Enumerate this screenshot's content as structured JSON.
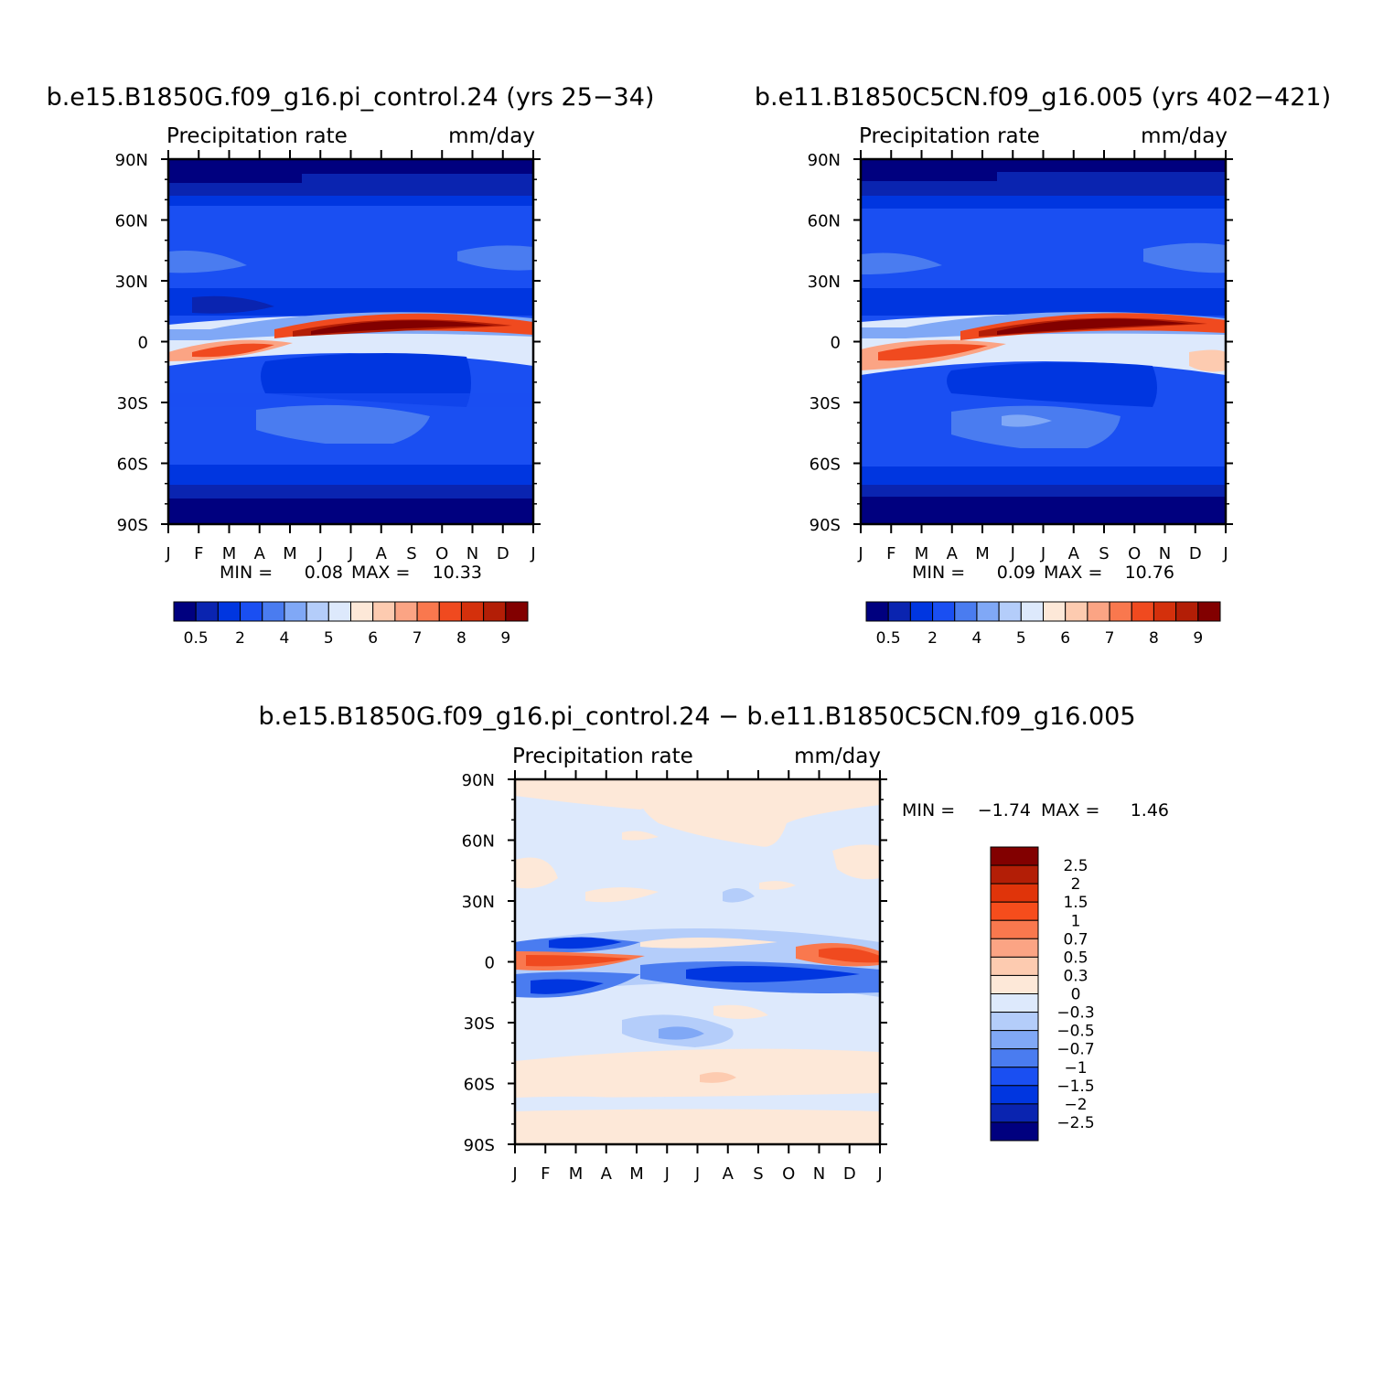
{
  "chart_data": [
    {
      "type": "heatmap",
      "title": "b.e15.B1850G.f09_g16.pi_control.24 (yrs 25-34)",
      "subtitle_left": "Precipitation rate",
      "units": "mm/day",
      "x": [
        "J",
        "F",
        "M",
        "A",
        "M",
        "J",
        "J",
        "A",
        "S",
        "O",
        "N",
        "D",
        "J"
      ],
      "y": [
        "90N",
        "60N",
        "30N",
        "0",
        "30S",
        "60S",
        "90S"
      ],
      "min_label": "MIN =",
      "min_value": "0.08",
      "max_label": "MAX =",
      "max_value": "10.33",
      "levels": [
        "0.5",
        "2",
        "4",
        "5",
        "6",
        "7",
        "8",
        "9"
      ],
      "colors": [
        "#00007f",
        "#0a24b0",
        "#0036e0",
        "#1a4ff2",
        "#4a7cf0",
        "#80a8f6",
        "#b4cdfa",
        "#dde9fc",
        "#fde8d8",
        "#fdcbb0",
        "#fba484",
        "#f9784e",
        "#f04a1f",
        "#d4300c",
        "#b31e06",
        "#820000"
      ]
    },
    {
      "type": "heatmap",
      "title": "b.e11.B1850C5CN.f09_g16.005 (yrs 402-421)",
      "subtitle_left": "Precipitation rate",
      "units": "mm/day",
      "x": [
        "J",
        "F",
        "M",
        "A",
        "M",
        "J",
        "J",
        "A",
        "S",
        "O",
        "N",
        "D",
        "J"
      ],
      "y": [
        "90N",
        "60N",
        "30N",
        "0",
        "30S",
        "60S",
        "90S"
      ],
      "min_label": "MIN =",
      "min_value": "0.09",
      "max_label": "MAX =",
      "max_value": "10.76",
      "levels": [
        "0.5",
        "2",
        "4",
        "5",
        "6",
        "7",
        "8",
        "9"
      ],
      "colors": [
        "#00007f",
        "#0a24b0",
        "#0036e0",
        "#1a4ff2",
        "#4a7cf0",
        "#80a8f6",
        "#b4cdfa",
        "#dde9fc",
        "#fde8d8",
        "#fdcbb0",
        "#fba484",
        "#f9784e",
        "#f04a1f",
        "#d4300c",
        "#b31e06",
        "#820000"
      ]
    },
    {
      "type": "heatmap",
      "title": "b.e15.B1850G.f09_g16.pi_control.24 - b.e11.B1850C5CN.f09_g16.005",
      "subtitle_left": "Precipitation rate",
      "units": "mm/day",
      "x": [
        "J",
        "F",
        "M",
        "A",
        "M",
        "J",
        "J",
        "A",
        "S",
        "O",
        "N",
        "D",
        "J"
      ],
      "y": [
        "90N",
        "60N",
        "30N",
        "0",
        "30S",
        "60S",
        "90S"
      ],
      "min_label": "MIN =",
      "min_value": "-1.74",
      "max_label": "MAX =",
      "max_value": "1.46",
      "levels": [
        "2.5",
        "2",
        "1.5",
        "1",
        "0.7",
        "0.5",
        "0.3",
        "0",
        "-0.3",
        "-0.5",
        "-0.7",
        "-1",
        "-1.5",
        "-2",
        "-2.5"
      ],
      "colors": [
        "#820000",
        "#b31e06",
        "#e0340a",
        "#f64d1c",
        "#f9784e",
        "#fba484",
        "#fdcbb0",
        "#fde8d8",
        "#dde9fc",
        "#b4cdfa",
        "#80a8f6",
        "#4a7cf0",
        "#1a4ff2",
        "#0036e0",
        "#0a24b0",
        "#00007f"
      ]
    }
  ]
}
